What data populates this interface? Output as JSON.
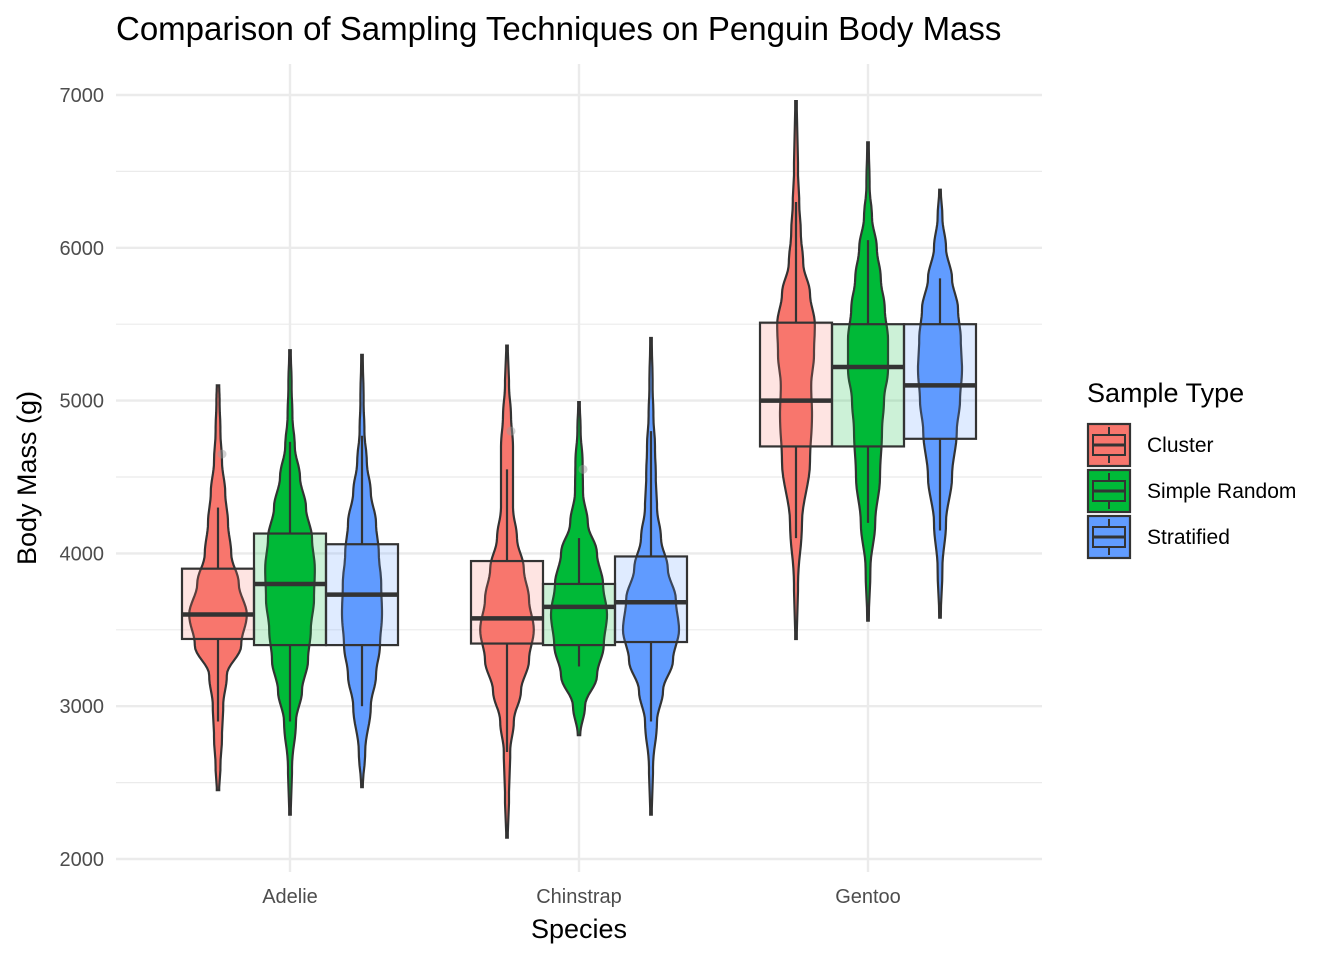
{
  "chart_data": {
    "type": "violin",
    "title": "Comparison of Sampling Techniques on Penguin Body Mass",
    "xlabel": "Species",
    "ylabel": "Body Mass (g)",
    "ylim": [
      1900,
      7250
    ],
    "yticks": [
      2000,
      3000,
      4000,
      5000,
      6000,
      7000
    ],
    "ytick_labels": [
      "2000",
      "3000",
      "4000",
      "5000",
      "6000",
      "7000"
    ],
    "categories": [
      "Adelie",
      "Chinstrap",
      "Gentoo"
    ],
    "grid": true,
    "legend": {
      "title": "Sample Type",
      "position": "right"
    },
    "series": [
      {
        "name": "Cluster",
        "color": "#F8766D",
        "groups": [
          {
            "category": "Adelie",
            "min": 2450,
            "max": 5100,
            "q1": 3440,
            "median": 3600,
            "q3": 3900,
            "whisker_low": 2900,
            "whisker_high": 4300,
            "outliers": [
              4650
            ],
            "density": [
              [
                2450,
                0.03
              ],
              [
                2600,
                0.06
              ],
              [
                2800,
                0.1
              ],
              [
                3000,
                0.13
              ],
              [
                3200,
                0.22
              ],
              [
                3400,
                0.58
              ],
              [
                3600,
                0.72
              ],
              [
                3800,
                0.52
              ],
              [
                4000,
                0.33
              ],
              [
                4200,
                0.25
              ],
              [
                4400,
                0.18
              ],
              [
                4600,
                0.1
              ],
              [
                4800,
                0.06
              ],
              [
                5000,
                0.04
              ],
              [
                5100,
                0.03
              ]
            ]
          },
          {
            "category": "Chinstrap",
            "min": 2140,
            "max": 5360,
            "q1": 3410,
            "median": 3575,
            "q3": 3950,
            "whisker_low": 2700,
            "whisker_high": 4550,
            "outliers": [
              4800
            ],
            "density": [
              [
                2140,
                0.02
              ],
              [
                2400,
                0.05
              ],
              [
                2700,
                0.08
              ],
              [
                2900,
                0.17
              ],
              [
                3100,
                0.35
              ],
              [
                3300,
                0.55
              ],
              [
                3500,
                0.67
              ],
              [
                3700,
                0.55
              ],
              [
                3900,
                0.42
              ],
              [
                4100,
                0.25
              ],
              [
                4300,
                0.15
              ],
              [
                4500,
                0.15
              ],
              [
                4700,
                0.15
              ],
              [
                4900,
                0.1
              ],
              [
                5100,
                0.05
              ],
              [
                5360,
                0.02
              ]
            ]
          },
          {
            "category": "Gentoo",
            "min": 3440,
            "max": 6960,
            "q1": 4700,
            "median": 5000,
            "q3": 5510,
            "whisker_low": 4100,
            "whisker_high": 6300,
            "outliers": [],
            "density": [
              [
                3440,
                0.02
              ],
              [
                3800,
                0.05
              ],
              [
                4200,
                0.15
              ],
              [
                4600,
                0.35
              ],
              [
                4900,
                0.4
              ],
              [
                5100,
                0.38
              ],
              [
                5300,
                0.45
              ],
              [
                5500,
                0.47
              ],
              [
                5700,
                0.35
              ],
              [
                5900,
                0.18
              ],
              [
                6100,
                0.12
              ],
              [
                6300,
                0.08
              ],
              [
                6500,
                0.05
              ],
              [
                6960,
                0.02
              ]
            ]
          }
        ]
      },
      {
        "name": "Simple Random",
        "color": "#00BA38",
        "groups": [
          {
            "category": "Adelie",
            "min": 2290,
            "max": 5330,
            "q1": 3400,
            "median": 3800,
            "q3": 4130,
            "whisker_low": 2900,
            "whisker_high": 4730,
            "outliers": [],
            "density": [
              [
                2290,
                0.02
              ],
              [
                2600,
                0.05
              ],
              [
                2900,
                0.15
              ],
              [
                3100,
                0.3
              ],
              [
                3300,
                0.45
              ],
              [
                3500,
                0.52
              ],
              [
                3700,
                0.6
              ],
              [
                3900,
                0.62
              ],
              [
                4100,
                0.55
              ],
              [
                4300,
                0.4
              ],
              [
                4500,
                0.25
              ],
              [
                4700,
                0.12
              ],
              [
                4900,
                0.06
              ],
              [
                5100,
                0.04
              ],
              [
                5330,
                0.02
              ]
            ]
          },
          {
            "category": "Chinstrap",
            "min": 2810,
            "max": 4990,
            "q1": 3400,
            "median": 3650,
            "q3": 3800,
            "whisker_low": 3260,
            "whisker_high": 4100,
            "outliers": [
              4550
            ],
            "density": [
              [
                2810,
                0.03
              ],
              [
                3000,
                0.15
              ],
              [
                3200,
                0.45
              ],
              [
                3400,
                0.62
              ],
              [
                3600,
                0.7
              ],
              [
                3800,
                0.6
              ],
              [
                4000,
                0.45
              ],
              [
                4200,
                0.22
              ],
              [
                4400,
                0.1
              ],
              [
                4600,
                0.09
              ],
              [
                4800,
                0.04
              ],
              [
                4990,
                0.02
              ]
            ]
          },
          {
            "category": "Gentoo",
            "min": 3560,
            "max": 6690,
            "q1": 4700,
            "median": 5220,
            "q3": 5500,
            "whisker_low": 4200,
            "whisker_high": 6050,
            "outliers": [],
            "density": [
              [
                3560,
                0.02
              ],
              [
                3900,
                0.06
              ],
              [
                4200,
                0.18
              ],
              [
                4500,
                0.3
              ],
              [
                4800,
                0.35
              ],
              [
                5000,
                0.4
              ],
              [
                5200,
                0.5
              ],
              [
                5400,
                0.5
              ],
              [
                5600,
                0.42
              ],
              [
                5800,
                0.32
              ],
              [
                6000,
                0.22
              ],
              [
                6200,
                0.1
              ],
              [
                6400,
                0.04
              ],
              [
                6690,
                0.02
              ]
            ]
          }
        ]
      },
      {
        "name": "Stratified",
        "color": "#619CFF",
        "groups": [
          {
            "category": "Adelie",
            "min": 2470,
            "max": 5300,
            "q1": 3400,
            "median": 3730,
            "q3": 4060,
            "whisker_low": 3000,
            "whisker_high": 4770,
            "outliers": [],
            "density": [
              [
                2470,
                0.02
              ],
              [
                2700,
                0.08
              ],
              [
                3000,
                0.22
              ],
              [
                3200,
                0.35
              ],
              [
                3400,
                0.45
              ],
              [
                3600,
                0.5
              ],
              [
                3800,
                0.48
              ],
              [
                4000,
                0.42
              ],
              [
                4200,
                0.35
              ],
              [
                4400,
                0.22
              ],
              [
                4600,
                0.12
              ],
              [
                4800,
                0.06
              ],
              [
                5000,
                0.04
              ],
              [
                5300,
                0.02
              ]
            ]
          },
          {
            "category": "Chinstrap",
            "min": 2290,
            "max": 5410,
            "q1": 3420,
            "median": 3680,
            "q3": 3980,
            "whisker_low": 2900,
            "whisker_high": 4800,
            "outliers": [],
            "density": [
              [
                2290,
                0.02
              ],
              [
                2600,
                0.05
              ],
              [
                2900,
                0.15
              ],
              [
                3100,
                0.3
              ],
              [
                3300,
                0.55
              ],
              [
                3500,
                0.7
              ],
              [
                3700,
                0.62
              ],
              [
                3900,
                0.42
              ],
              [
                4100,
                0.25
              ],
              [
                4300,
                0.15
              ],
              [
                4500,
                0.12
              ],
              [
                4700,
                0.1
              ],
              [
                4900,
                0.06
              ],
              [
                5100,
                0.04
              ],
              [
                5410,
                0.02
              ]
            ]
          },
          {
            "category": "Gentoo",
            "min": 3580,
            "max": 6380,
            "q1": 4750,
            "median": 5100,
            "q3": 5500,
            "whisker_low": 4150,
            "whisker_high": 5800,
            "outliers": [],
            "density": [
              [
                3580,
                0.02
              ],
              [
                3900,
                0.06
              ],
              [
                4200,
                0.15
              ],
              [
                4500,
                0.3
              ],
              [
                4800,
                0.42
              ],
              [
                5000,
                0.5
              ],
              [
                5200,
                0.55
              ],
              [
                5400,
                0.52
              ],
              [
                5600,
                0.45
              ],
              [
                5800,
                0.3
              ],
              [
                6000,
                0.15
              ],
              [
                6200,
                0.06
              ],
              [
                6380,
                0.02
              ]
            ]
          }
        ]
      }
    ]
  }
}
